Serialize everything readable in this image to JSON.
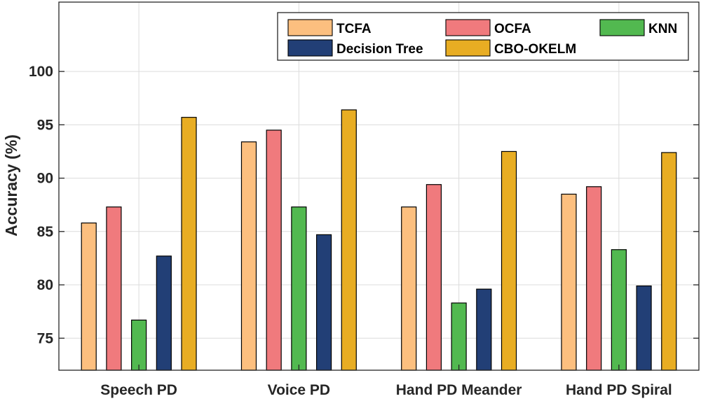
{
  "chart_data": {
    "type": "bar",
    "title": "",
    "xlabel": "",
    "ylabel": "Accuracy (%)",
    "ylim": [
      72,
      106.5
    ],
    "yticks": [
      75,
      80,
      85,
      90,
      95,
      100
    ],
    "grid": true,
    "legend_position": "top-right",
    "categories": [
      "Speech PD",
      "Voice PD",
      "Hand PD Meander",
      "Hand PD Spiral"
    ],
    "series": [
      {
        "name": "TCFA",
        "color": "#FCBF7F",
        "values": [
          85.8,
          93.4,
          87.3,
          88.5
        ]
      },
      {
        "name": "OCFA",
        "color": "#F07A7D",
        "values": [
          87.3,
          94.5,
          89.4,
          89.2
        ]
      },
      {
        "name": "KNN",
        "color": "#52B950",
        "values": [
          76.7,
          87.3,
          78.3,
          83.3
        ]
      },
      {
        "name": "Decision Tree",
        "color": "#223F76",
        "values": [
          82.7,
          84.7,
          79.6,
          79.9
        ]
      },
      {
        "name": "CBO-OKELM",
        "color": "#E8AD23",
        "values": [
          95.7,
          96.4,
          92.5,
          92.4
        ]
      }
    ]
  }
}
